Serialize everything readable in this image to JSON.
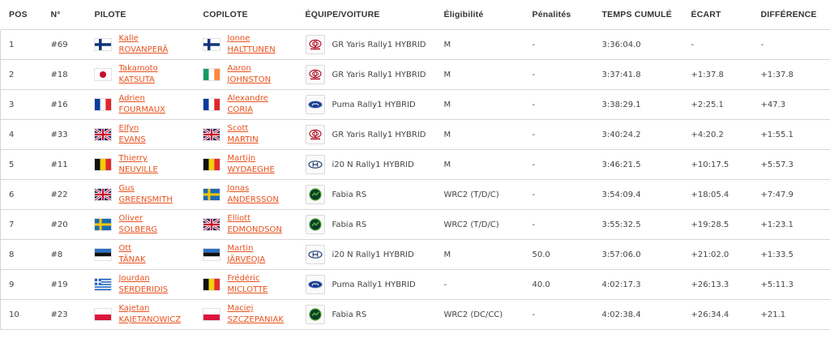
{
  "headers": {
    "pos": "POS",
    "num": "N°",
    "driver": "PILOTE",
    "codriver": "COPILOTE",
    "team": "ÉQUIPE/VOITURE",
    "eligibility": "Éligibilité",
    "penalties": "Pénalités",
    "total_time": "TEMPS CUMULÉ",
    "gap": "ÉCART",
    "diff": "DIFFÉRENCE"
  },
  "rows": [
    {
      "pos": "1",
      "num": "#69",
      "driver_first": "Kalle",
      "driver_last": "ROVANPERÄ",
      "driver_flag": "finland",
      "codriver_first": "Jonne",
      "codriver_last": "HALTTUNEN",
      "codriver_flag": "finland",
      "brand": "toyota-logo",
      "car": "GR Yaris Rally1 HYBRID",
      "eligibility": "M",
      "penalties": "-",
      "total_time": "3:36:04.0",
      "gap": "-",
      "diff": "-"
    },
    {
      "pos": "2",
      "num": "#18",
      "driver_first": "Takamoto",
      "driver_last": "KATSUTA",
      "driver_flag": "japan",
      "codriver_first": "Aaron",
      "codriver_last": "JOHNSTON",
      "codriver_flag": "ireland",
      "brand": "toyota-logo",
      "car": "GR Yaris Rally1 HYBRID",
      "eligibility": "M",
      "penalties": "-",
      "total_time": "3:37:41.8",
      "gap": "+1:37.8",
      "diff": "+1:37.8"
    },
    {
      "pos": "3",
      "num": "#16",
      "driver_first": "Adrien",
      "driver_last": "FOURMAUX",
      "driver_flag": "france",
      "codriver_first": "Alexandre",
      "codriver_last": "CORIA",
      "codriver_flag": "france",
      "brand": "ford-logo",
      "car": "Puma Rally1 HYBRID",
      "eligibility": "M",
      "penalties": "-",
      "total_time": "3:38:29.1",
      "gap": "+2:25.1",
      "diff": "+47.3"
    },
    {
      "pos": "4",
      "num": "#33",
      "driver_first": "Elfyn",
      "driver_last": "EVANS",
      "driver_flag": "uk",
      "codriver_first": "Scott",
      "codriver_last": "MARTIN",
      "codriver_flag": "uk",
      "brand": "toyota-logo",
      "car": "GR Yaris Rally1 HYBRID",
      "eligibility": "M",
      "penalties": "-",
      "total_time": "3:40:24.2",
      "gap": "+4:20.2",
      "diff": "+1:55.1"
    },
    {
      "pos": "5",
      "num": "#11",
      "driver_first": "Thierry",
      "driver_last": "NEUVILLE",
      "driver_flag": "belgium",
      "codriver_first": "Martijn",
      "codriver_last": "WYDAEGHE",
      "codriver_flag": "belgium",
      "brand": "hyundai-logo",
      "car": "i20 N Rally1 HYBRID",
      "eligibility": "M",
      "penalties": "-",
      "total_time": "3:46:21.5",
      "gap": "+10:17.5",
      "diff": "+5:57.3"
    },
    {
      "pos": "6",
      "num": "#22",
      "driver_first": "Gus",
      "driver_last": "GREENSMITH",
      "driver_flag": "uk",
      "codriver_first": "Jonas",
      "codriver_last": "ANDERSSON",
      "codriver_flag": "sweden",
      "brand": "skoda-logo",
      "car": "Fabia RS",
      "eligibility": "WRC2 (T/D/C)",
      "penalties": "-",
      "total_time": "3:54:09.4",
      "gap": "+18:05.4",
      "diff": "+7:47.9"
    },
    {
      "pos": "7",
      "num": "#20",
      "driver_first": "Oliver",
      "driver_last": "SOLBERG",
      "driver_flag": "sweden",
      "codriver_first": "Elliott",
      "codriver_last": "EDMONDSON",
      "codriver_flag": "uk",
      "brand": "skoda-logo",
      "car": "Fabia RS",
      "eligibility": "WRC2 (T/D/C)",
      "penalties": "-",
      "total_time": "3:55:32.5",
      "gap": "+19:28.5",
      "diff": "+1:23.1"
    },
    {
      "pos": "8",
      "num": "#8",
      "driver_first": "Ott",
      "driver_last": "TÄNAK",
      "driver_flag": "estonia",
      "codriver_first": "Martin",
      "codriver_last": "JÄRVEOJA",
      "codriver_flag": "estonia",
      "brand": "hyundai-logo",
      "car": "i20 N Rally1 HYBRID",
      "eligibility": "M",
      "penalties": "50.0",
      "total_time": "3:57:06.0",
      "gap": "+21:02.0",
      "diff": "+1:33.5"
    },
    {
      "pos": "9",
      "num": "#19",
      "driver_first": "Jourdan",
      "driver_last": "SERDERIDIS",
      "driver_flag": "greece",
      "codriver_first": "Frédéric",
      "codriver_last": "MICLOTTE",
      "codriver_flag": "belgium",
      "brand": "ford-logo",
      "car": "Puma Rally1 HYBRID",
      "eligibility": "-",
      "penalties": "40.0",
      "total_time": "4:02:17.3",
      "gap": "+26:13.3",
      "diff": "+5:11.3"
    },
    {
      "pos": "10",
      "num": "#23",
      "driver_first": "Kajetan",
      "driver_last": "KAJETANOWICZ",
      "driver_flag": "poland",
      "codriver_first": "Maciej",
      "codriver_last": "SZCZEPANIAK",
      "codriver_flag": "poland",
      "brand": "skoda-logo",
      "car": "Fabia RS",
      "eligibility": "WRC2 (DC/CC)",
      "penalties": "-",
      "total_time": "4:02:38.4",
      "gap": "+26:34.4",
      "diff": "+21.1"
    }
  ],
  "colors": {
    "link": "#e8511c",
    "text": "#444444",
    "header": "#333333",
    "border": "#d6d6d6"
  }
}
